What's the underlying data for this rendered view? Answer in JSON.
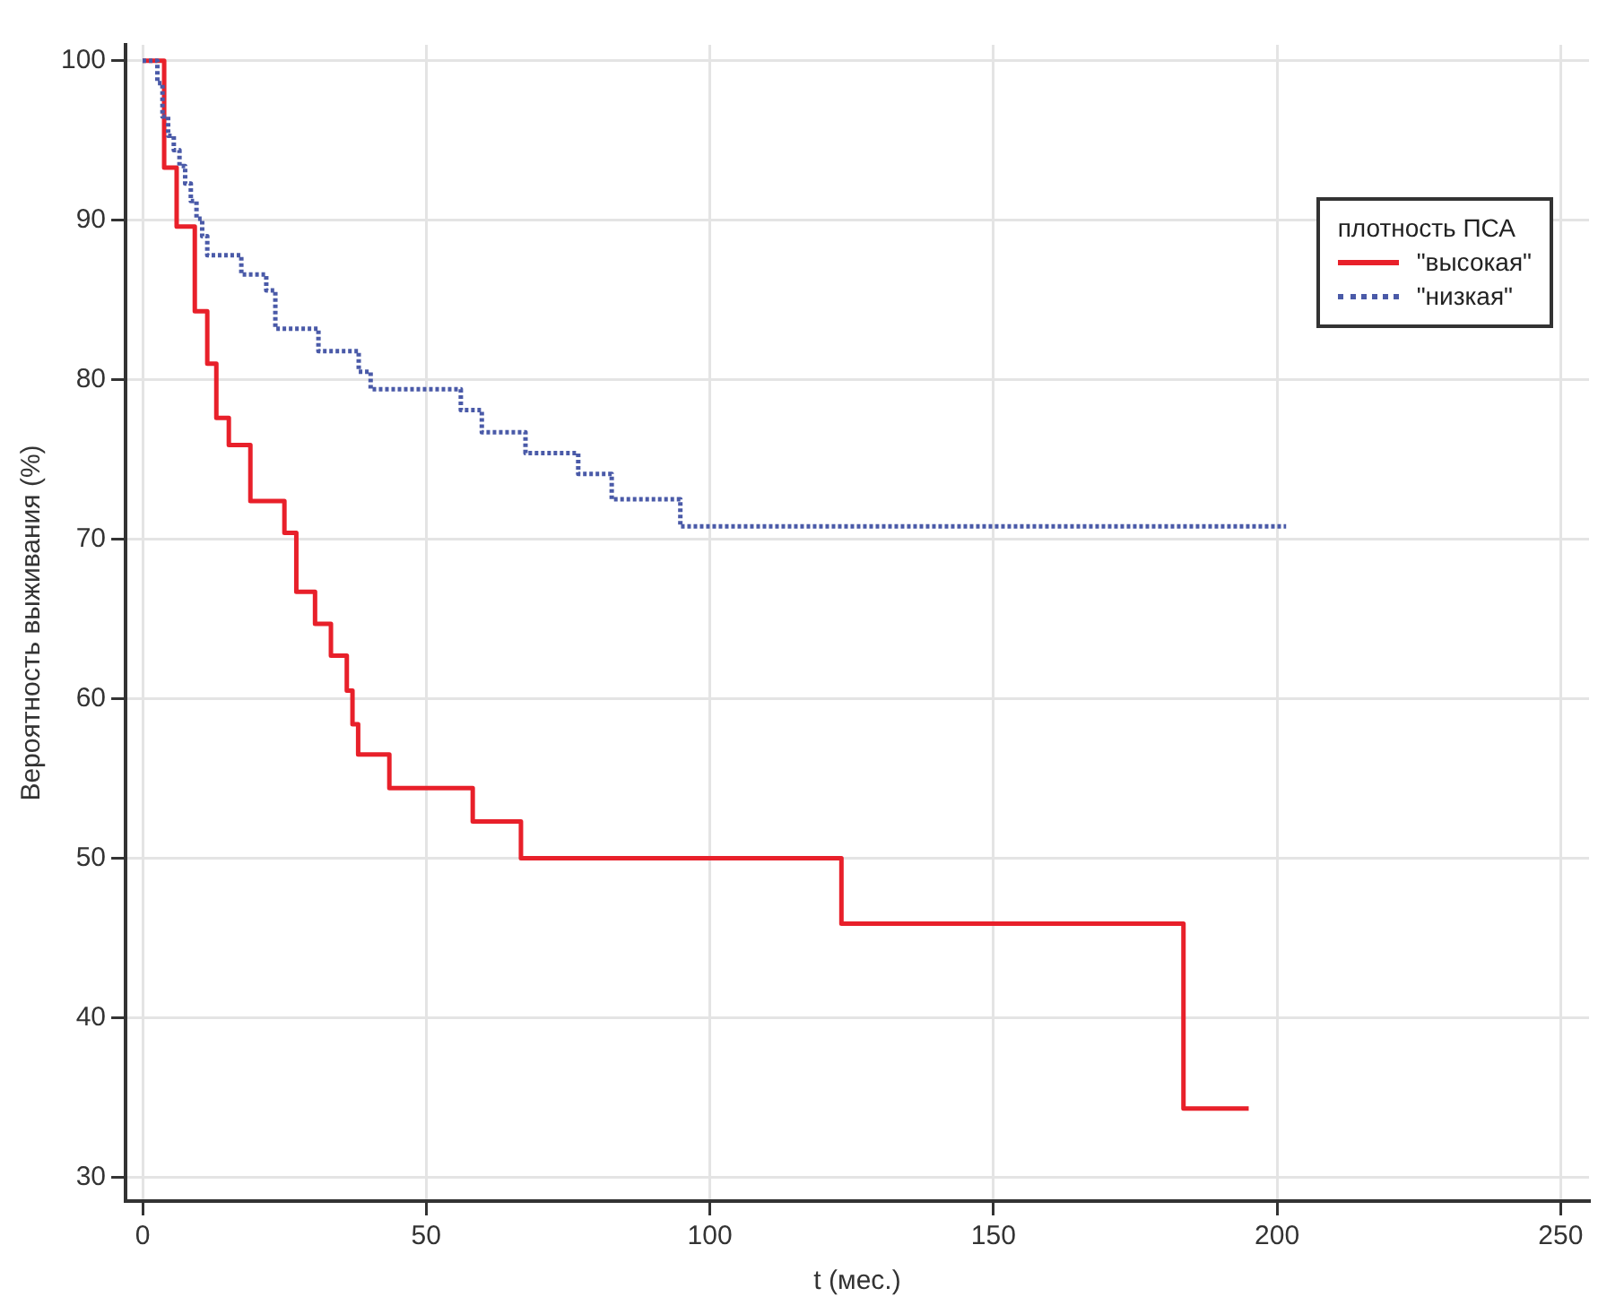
{
  "chart_data": {
    "type": "step",
    "xlabel": "t (мес.)",
    "ylabel": "Вероятность выживания (%)",
    "legend_title": "плотность ПСА",
    "legend": "top right",
    "grid": true,
    "marker": "none",
    "xlim": [
      -3,
      255
    ],
    "xticks": [
      0,
      50,
      100,
      150,
      200,
      250
    ],
    "ylim": [
      28.5,
      101
    ],
    "yticks": [
      30,
      40,
      50,
      60,
      70,
      80,
      90,
      100
    ],
    "series": [
      {
        "name": "\"высокая\"",
        "color": "#e8202a",
        "line_style": "solid",
        "x": [
          0,
          3.8,
          6,
          9.2,
          11.4,
          13,
          15.2,
          19,
          25,
          27.1,
          30.4,
          33.2,
          36,
          37,
          38,
          43.5,
          58.2,
          66.7,
          123.2,
          183.5,
          195
        ],
        "values": [
          100,
          93.3,
          89.6,
          84.3,
          81,
          77.6,
          75.9,
          72.4,
          70.4,
          66.7,
          64.7,
          62.7,
          60.5,
          58.4,
          56.5,
          54.4,
          52.3,
          50,
          45.9,
          34.3,
          34.3
        ]
      },
      {
        "name": "\"низкая\"",
        "color": "#4a5aa8",
        "line_style": "dotted",
        "x": [
          0,
          2.6,
          3.5,
          4.5,
          5.5,
          6.5,
          7.5,
          8.5,
          9.5,
          10.5,
          11.4,
          17.4,
          21.8,
          23.4,
          31,
          38.1,
          40.2,
          56.1,
          59.8,
          67.5,
          76.8,
          82.7,
          94.8,
          201.6
        ],
        "values": [
          100,
          98.6,
          96.5,
          95.3,
          94.4,
          93.4,
          92.3,
          91.2,
          90.1,
          89,
          87.8,
          86.6,
          85.6,
          83.2,
          81.8,
          80.5,
          79.4,
          78.1,
          76.7,
          75.4,
          74.1,
          72.5,
          70.8,
          70.8
        ]
      }
    ]
  }
}
